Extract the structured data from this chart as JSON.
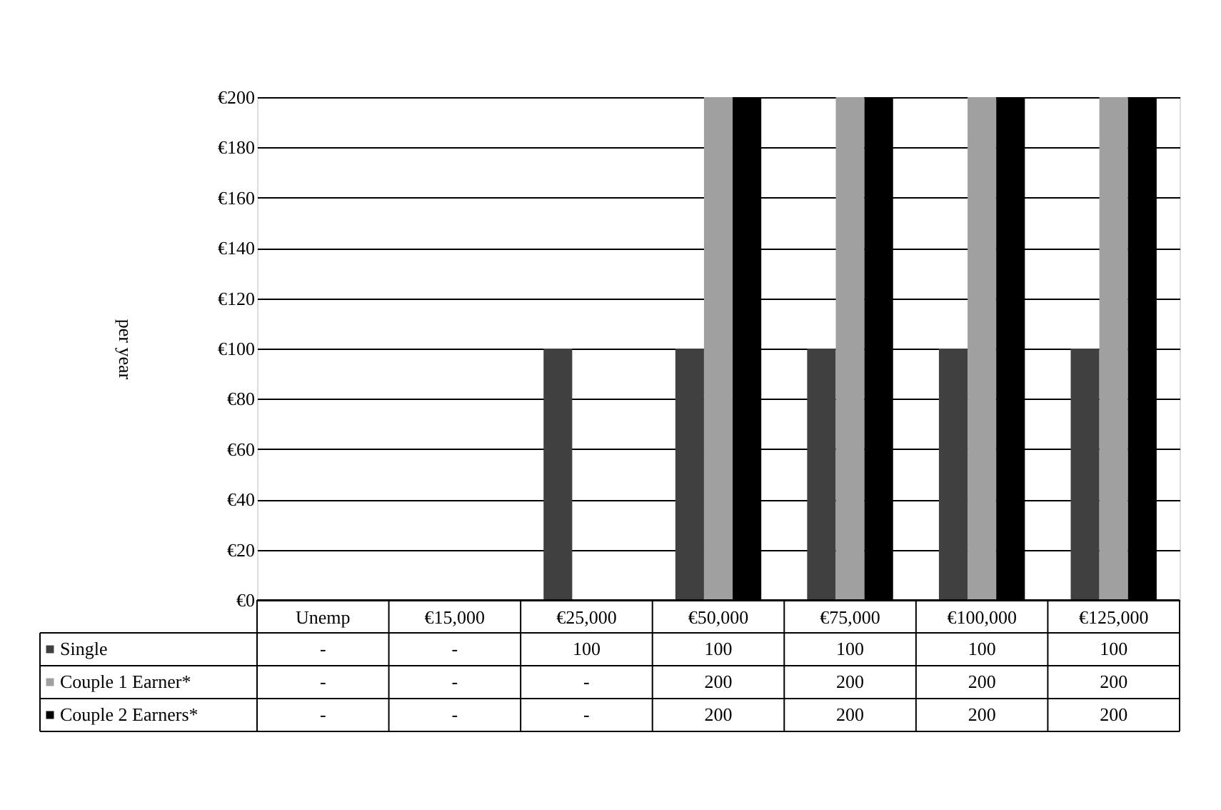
{
  "chart_data": {
    "type": "bar",
    "ylabel": "per year",
    "categories": [
      "Unemp",
      "€15,000",
      "€25,000",
      "€50,000",
      "€75,000",
      "€100,000",
      "€125,000"
    ],
    "series": [
      {
        "name": "Single",
        "color": "#404040",
        "values": [
          null,
          null,
          100,
          100,
          100,
          100,
          100
        ],
        "value_labels": [
          "-",
          "-",
          "100",
          "100",
          "100",
          "100",
          "100"
        ]
      },
      {
        "name": "Couple 1 Earner*",
        "color": "#a0a0a0",
        "values": [
          null,
          null,
          null,
          200,
          200,
          200,
          200
        ],
        "value_labels": [
          "-",
          "-",
          "-",
          "200",
          "200",
          "200",
          "200"
        ]
      },
      {
        "name": "Couple 2 Earners*",
        "color": "#000000",
        "values": [
          null,
          null,
          null,
          200,
          200,
          200,
          200
        ],
        "value_labels": [
          "-",
          "-",
          "-",
          "200",
          "200",
          "200",
          "200"
        ]
      }
    ],
    "ylim": [
      0,
      200
    ],
    "yticks": [
      {
        "value": 0,
        "label": "€0"
      },
      {
        "value": 20,
        "label": "€20"
      },
      {
        "value": 40,
        "label": "€40"
      },
      {
        "value": 60,
        "label": "€60"
      },
      {
        "value": 80,
        "label": "€80"
      },
      {
        "value": 100,
        "label": "€100"
      },
      {
        "value": 120,
        "label": "€120"
      },
      {
        "value": 140,
        "label": "€140"
      },
      {
        "value": 160,
        "label": "€160"
      },
      {
        "value": 180,
        "label": "€180"
      },
      {
        "value": 200,
        "label": "€200"
      }
    ],
    "grid": "y",
    "legend": "bottom"
  }
}
